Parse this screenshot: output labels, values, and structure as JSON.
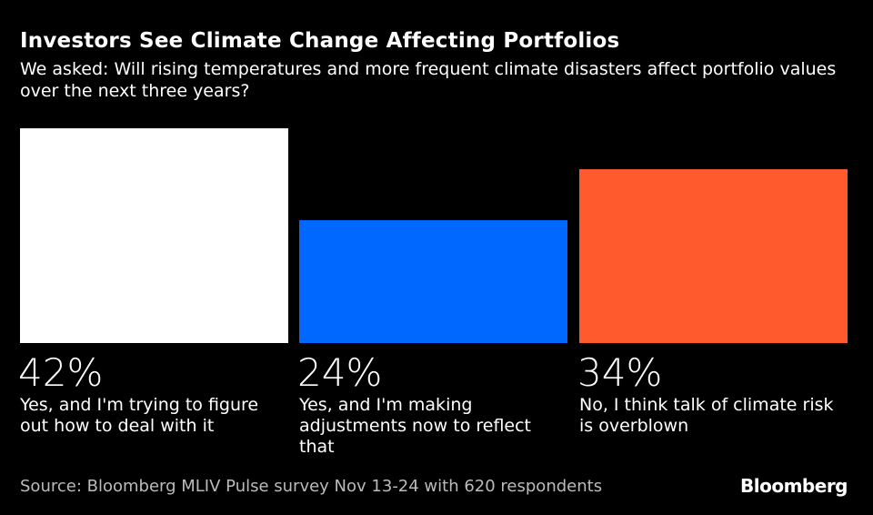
{
  "chart_data": {
    "type": "bar",
    "title": "Investors See Climate Change Affecting Portfolios",
    "subtitle": "We asked: Will rising temperatures and more frequent climate disasters affect portfolio values over the next three years?",
    "categories": [
      "Yes, and I'm trying to figure out how to deal with it",
      "Yes, and I'm making adjustments now to reflect that",
      "No, I think talk of climate risk is overblown"
    ],
    "values": [
      42,
      24,
      34
    ],
    "value_labels": [
      "42%",
      "24%",
      "34%"
    ],
    "colors": [
      "#ffffff",
      "#0068ff",
      "#ff5a2d"
    ],
    "ylim": [
      0,
      42
    ],
    "xlabel": "",
    "ylabel": "",
    "grid": false
  },
  "footer": {
    "source": "Source: Bloomberg MLIV Pulse survey Nov 13-24 with 620 respondents",
    "logo": "Bloomberg"
  }
}
